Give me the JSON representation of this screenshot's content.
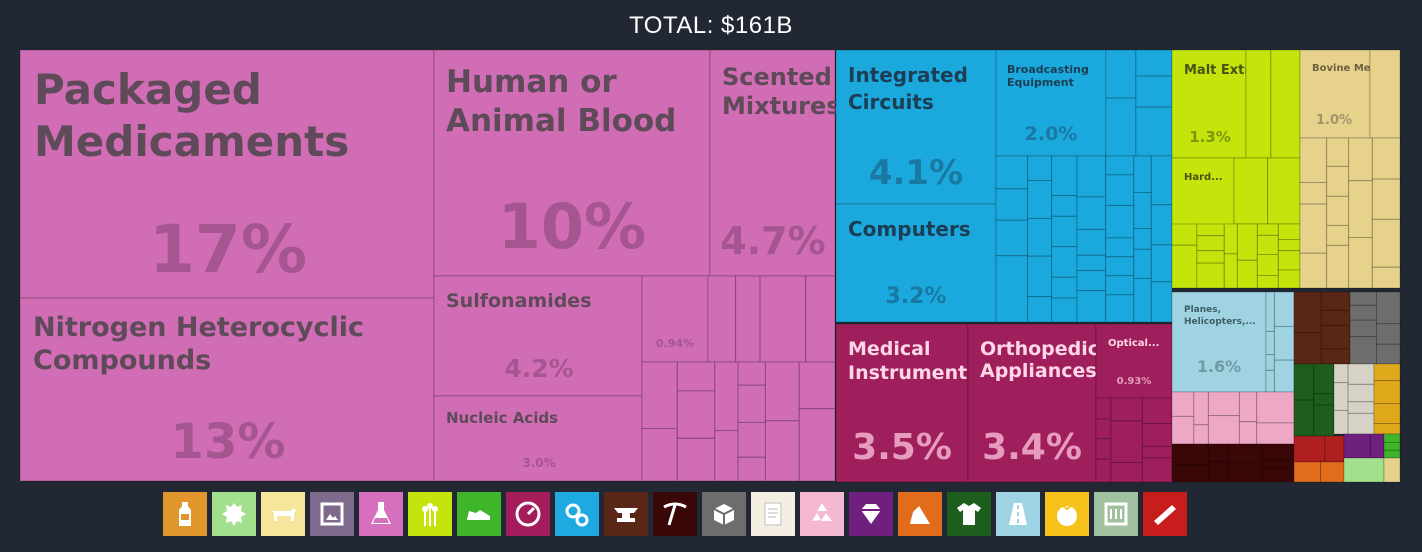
{
  "title": "TOTAL: $161B",
  "chart_data": {
    "type": "treemap",
    "title": "TOTAL: $161B",
    "major_tiles": [
      {
        "label": "Packaged Medicaments",
        "value": "17%",
        "sector": "chemical"
      },
      {
        "label": "Nitrogen Heterocyclic Compounds",
        "value": "13%",
        "sector": "chemical"
      },
      {
        "label": "Human or Animal Blood",
        "value": "10%",
        "sector": "chemical"
      },
      {
        "label": "Scented Mixtures",
        "value": "4.7%",
        "sector": "chemical"
      },
      {
        "label": "Sulfonamides",
        "value": "4.2%",
        "sector": "chemical"
      },
      {
        "label": "Nucleic Acids",
        "value": "3.0%",
        "sector": "chemical"
      },
      {
        "label": "",
        "value": "0.94%",
        "sector": "chemical"
      },
      {
        "label": "Integrated Circuits",
        "value": "4.1%",
        "sector": "machinery"
      },
      {
        "label": "Broadcasting Equipment",
        "value": "2.0%",
        "sector": "machinery"
      },
      {
        "label": "Computers",
        "value": "3.2%",
        "sector": "machinery"
      },
      {
        "label": "Medical Instruments",
        "value": "3.5%",
        "sector": "instruments"
      },
      {
        "label": "Orthopedic Appliances",
        "value": "3.4%",
        "sector": "instruments"
      },
      {
        "label": "Optical...",
        "value": "0.93%",
        "sector": "instruments"
      },
      {
        "label": "Malt Extract",
        "value": "1.3%",
        "sector": "foodstuffs"
      },
      {
        "label": "Hard...",
        "value": "",
        "sector": "foodstuffs"
      },
      {
        "label": "Bovine Meat",
        "value": "1.0%",
        "sector": "animal"
      },
      {
        "label": "Planes, Helicopters,...",
        "value": "1.6%",
        "sector": "transport"
      }
    ]
  },
  "colors": {
    "chemical": "#d06db4",
    "chemical_label": "#5e4a58",
    "chemical_value": "#a5558f",
    "machinery": "#1ba9dd",
    "machinery_label": "#1c3e55",
    "machinery_value": "#1979a3",
    "instruments": "#9f1f5d",
    "instruments_label": "#ffd6e6",
    "instruments_value": "#e79bbd",
    "foodstuffs": "#c4e40b",
    "foodstuffs_label": "#485214",
    "foodstuffs_value": "#7e9514",
    "animal": "#e6d28b",
    "animal_label": "#6e6243",
    "animal_value": "#a1946a",
    "transport": "#9fd3e1",
    "transport_label": "#3e5d66",
    "transport_value": "#6f9aa6"
  },
  "legend_icons": [
    {
      "name": "bottle-icon",
      "color": "#e0952d"
    },
    {
      "name": "animal-hide-icon",
      "color": "#a3e08e"
    },
    {
      "name": "cow-icon",
      "color": "#f5e69c"
    },
    {
      "name": "picture-frame-icon",
      "color": "#7d6a8d"
    },
    {
      "name": "flask-icon",
      "color": "#d66fbd"
    },
    {
      "name": "wheat-icon",
      "color": "#c4e40b"
    },
    {
      "name": "shoe-icon",
      "color": "#3fb52a"
    },
    {
      "name": "gauge-icon",
      "color": "#a31c5c"
    },
    {
      "name": "gears-icon",
      "color": "#1fa9e1"
    },
    {
      "name": "anvil-icon",
      "color": "#5a2615"
    },
    {
      "name": "pickaxe-icon",
      "color": "#3a0707"
    },
    {
      "name": "boxes-icon",
      "color": "#6d6d6d"
    },
    {
      "name": "paper-scroll-icon",
      "color": "#f4efe1"
    },
    {
      "name": "recycle-icon",
      "color": "#f4b8d2"
    },
    {
      "name": "gem-icon",
      "color": "#6f1f7e"
    },
    {
      "name": "stone-icon",
      "color": "#e06c1c"
    },
    {
      "name": "shirt-icon",
      "color": "#1d5e1d"
    },
    {
      "name": "road-icon",
      "color": "#9ed3e3"
    },
    {
      "name": "tomato-icon",
      "color": "#f7c11b"
    },
    {
      "name": "furniture-icon",
      "color": "#a0c0a0"
    },
    {
      "name": "plank-icon",
      "color": "#c81d1d"
    }
  ]
}
